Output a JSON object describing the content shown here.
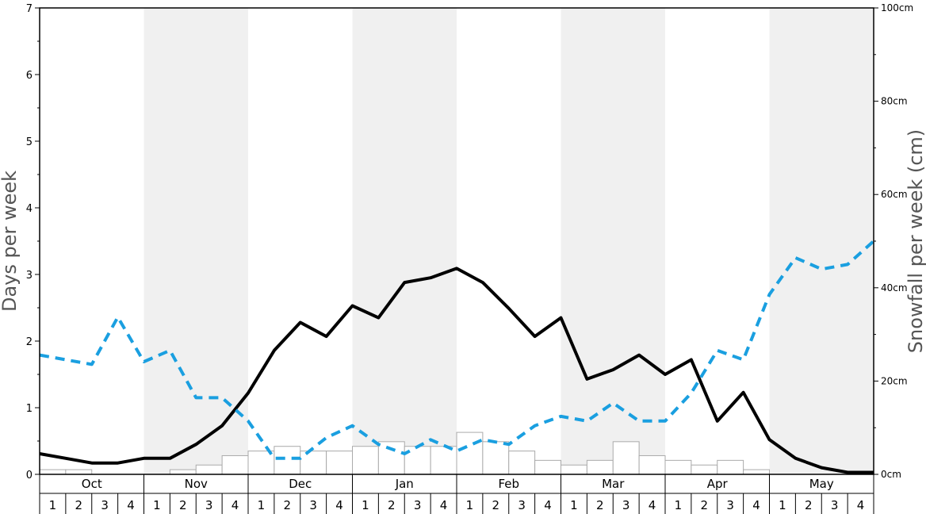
{
  "chart_data": {
    "type": "bar",
    "title": "",
    "months": [
      "Oct",
      "Nov",
      "Dec",
      "Jan",
      "Feb",
      "Mar",
      "Apr",
      "May"
    ],
    "week_labels": [
      "1",
      "2",
      "3",
      "4"
    ],
    "left_axis": {
      "label": "Days per week",
      "ylim": [
        0,
        7
      ],
      "ticks": [
        "0",
        "1",
        "2",
        "3",
        "4",
        "5",
        "6",
        "7"
      ]
    },
    "right_axis": {
      "label": "Snowfall per week (cm)",
      "ylim": [
        0,
        100
      ],
      "ticks": [
        "0cm",
        "20cm",
        "40cm",
        "60cm",
        "80cm",
        "100cm"
      ]
    },
    "grid": false,
    "alternating_month_shading": true,
    "colors": {
      "shade": "#f0f0f0",
      "bars_fill": "#ffffff",
      "bars_stroke": "#aaaaaa",
      "solid_line": "#000000",
      "dashed_line": "#1a9fe0"
    },
    "series": [
      {
        "kind": "bar",
        "axis": "right",
        "values": [
          1,
          1,
          0,
          0,
          0,
          1,
          2,
          4,
          5,
          6,
          5,
          5,
          6,
          7,
          6,
          6,
          9,
          7,
          5,
          3,
          2,
          3,
          7,
          4,
          3,
          2,
          3,
          1,
          0,
          0,
          0,
          0
        ]
      },
      {
        "kind": "line",
        "style": "solid",
        "axis": "left",
        "values": [
          0.31,
          0.24,
          0.17,
          0.17,
          0.24,
          0.24,
          0.45,
          0.73,
          1.22,
          1.86,
          2.28,
          2.07,
          2.53,
          2.35,
          2.88,
          2.95,
          3.09,
          2.88,
          2.49,
          2.07,
          2.35,
          1.43,
          1.57,
          1.79,
          1.5,
          1.72,
          0.8,
          1.23,
          0.52,
          0.24,
          0.1,
          0.03,
          0.03
        ]
      },
      {
        "kind": "line",
        "style": "dashed",
        "axis": "left",
        "values": [
          1.79,
          1.72,
          1.65,
          2.36,
          1.69,
          1.86,
          1.15,
          1.15,
          0.8,
          0.24,
          0.24,
          0.55,
          0.73,
          0.45,
          0.31,
          0.52,
          0.35,
          0.52,
          0.45,
          0.73,
          0.87,
          0.8,
          1.07,
          0.8,
          0.8,
          1.22,
          1.86,
          1.72,
          2.7,
          3.25,
          3.08,
          3.15,
          3.5
        ]
      }
    ]
  }
}
